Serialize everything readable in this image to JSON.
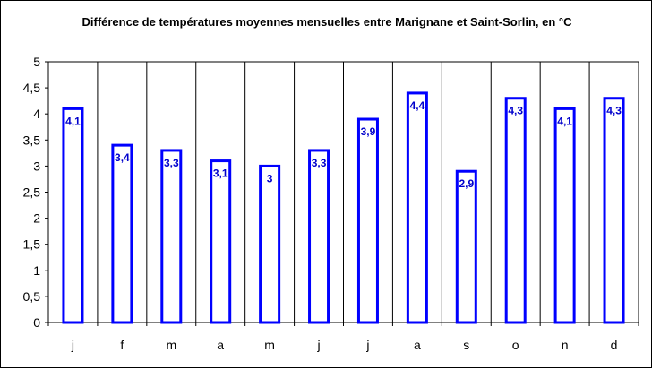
{
  "chart_data": {
    "type": "bar",
    "title": "Différence de températures moyennes mensuelles entre Marignane et Saint-Sorlin, en °C",
    "categories": [
      "j",
      "f",
      "m",
      "a",
      "m",
      "j",
      "j",
      "a",
      "s",
      "o",
      "n",
      "d"
    ],
    "values": [
      4.1,
      3.4,
      3.3,
      3.1,
      3.0,
      3.3,
      3.9,
      4.4,
      2.9,
      4.3,
      4.1,
      4.3
    ],
    "data_labels": [
      "4,1",
      "3,4",
      "3,3",
      "3,1",
      "3",
      "3,3",
      "3,9",
      "4,4",
      "2,9",
      "4,3",
      "4,1",
      "4,3"
    ],
    "ylim": [
      0,
      5
    ],
    "yticks": [
      0,
      0.5,
      1,
      1.5,
      2,
      2.5,
      3,
      3.5,
      4,
      4.5,
      5
    ],
    "ytick_labels": [
      "0",
      "0,5",
      "1",
      "1,5",
      "2",
      "2,5",
      "3",
      "3,5",
      "4",
      "4,5",
      "5"
    ],
    "xlabel": "",
    "ylabel": "",
    "grid": "vertical category separators",
    "legend": "none",
    "bar_fill": "#ffffff",
    "bar_stroke": "#0000ff",
    "label_color": "#0000cc"
  }
}
